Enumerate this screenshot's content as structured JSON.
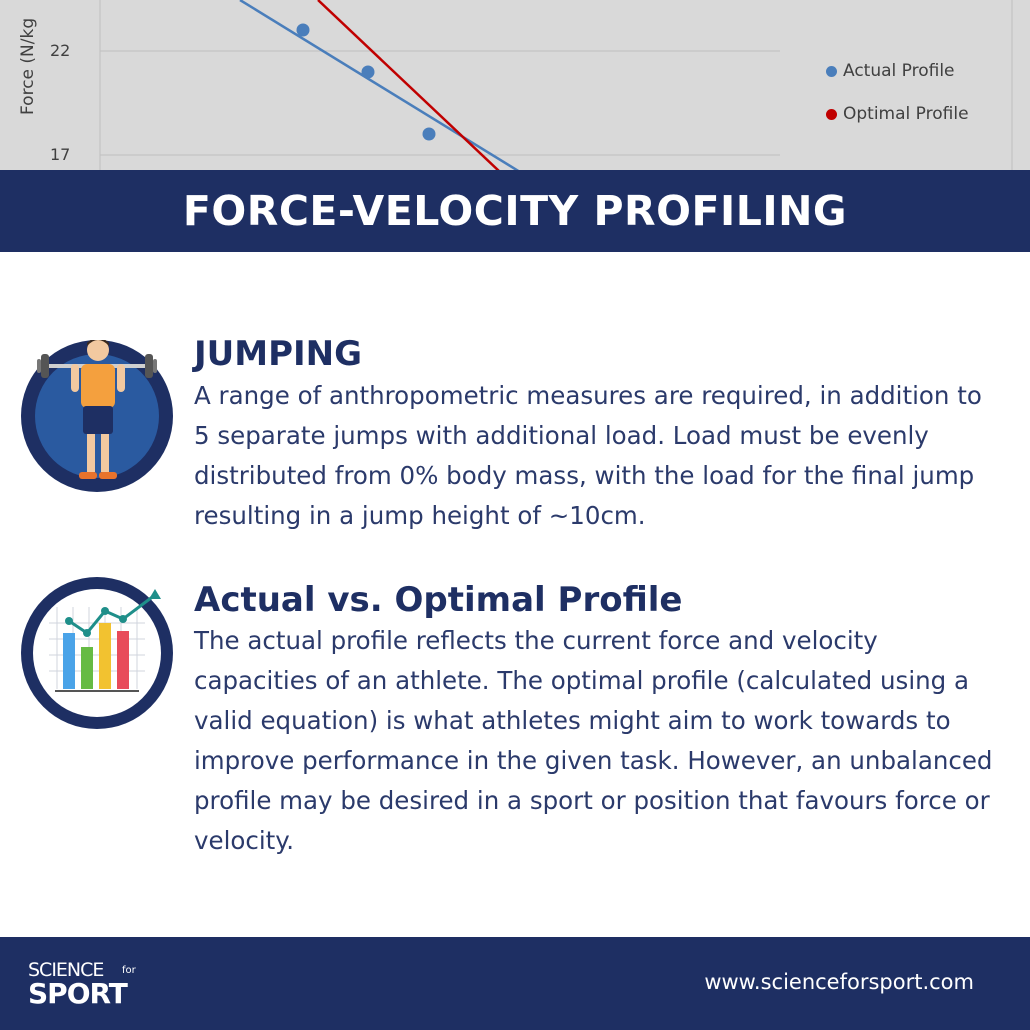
{
  "chart": {
    "ylabel": "Force (N/kg",
    "yticks": [
      "22",
      "17"
    ],
    "legend": [
      {
        "label": "Actual Profile",
        "color": "#4a7ebb"
      },
      {
        "label": "Optimal Profile",
        "color": "#c00000"
      }
    ]
  },
  "banner": {
    "title": "FORCE-VELOCITY PROFILING"
  },
  "sections": [
    {
      "heading": "JUMPING",
      "body": "A range of anthropometric measures are required, in addition to 5 separate jumps with additional load. Load must be evenly distributed from 0% body mass, with the load for the final jump resulting in a jump height of ~10cm."
    },
    {
      "heading": "Actual vs. Optimal Profile",
      "body": "The actual profile reflects the current force and velocity capacities of an athlete. The optimal profile (calculated using a valid equation) is what athletes might aim to work towards to improve performance in the given task. However, an unbalanced profile may be desired in a sport or position that favours force or velocity."
    }
  ],
  "footer": {
    "logo_science": "SCIENCE",
    "logo_for": "for",
    "logo_sport": "SPORT",
    "website": "www.scienceforsport.com"
  },
  "colors": {
    "navy": "#1e2f63",
    "chart_bg": "#d9d9d9",
    "actual": "#4a7ebb",
    "optimal": "#c00000"
  }
}
